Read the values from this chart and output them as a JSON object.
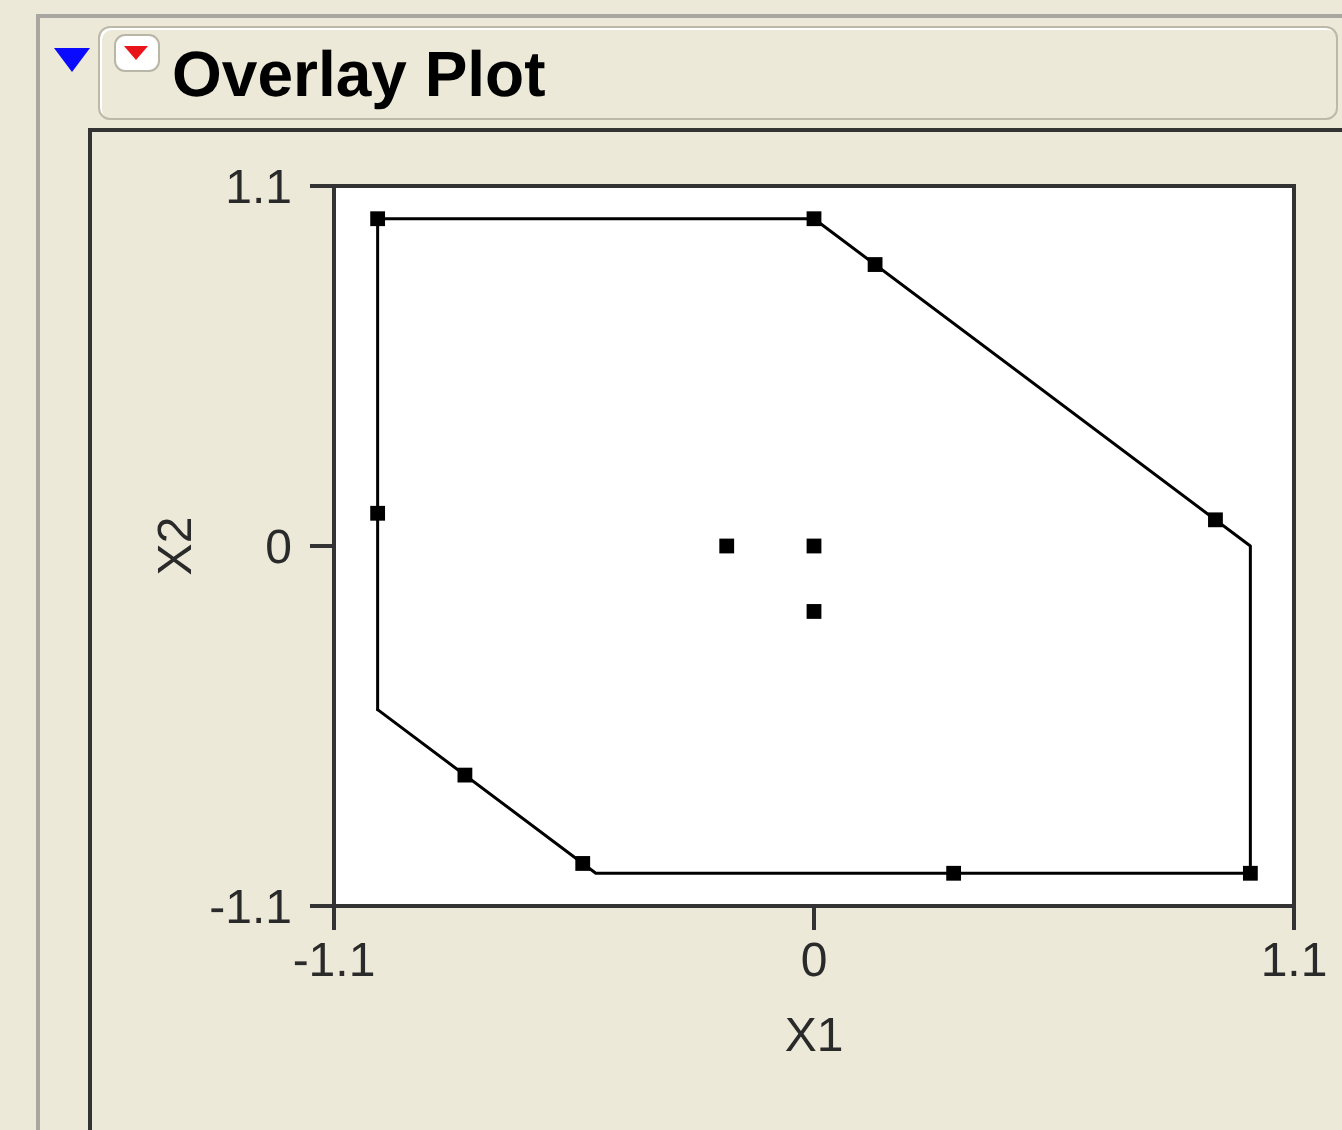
{
  "chart_data": {
    "type": "scatter",
    "title": "Overlay Plot",
    "xlabel": "X1",
    "ylabel": "X2",
    "xlim": [
      -1.1,
      1.1
    ],
    "xticks": [
      -1.1,
      0,
      1.1
    ],
    "ylim": [
      -1.1,
      1.1
    ],
    "yticks": [
      -1.1,
      0,
      1.1
    ],
    "series": [
      {
        "type": "line",
        "color": "#000000",
        "marker": "none",
        "line_style": "solid",
        "x": [
          -1,
          -1,
          0,
          1,
          1
        ],
        "values": [
          -0.5,
          1,
          1,
          0,
          -1
        ]
      },
      {
        "type": "line",
        "color": "#000000",
        "marker": "none",
        "line_style": "solid",
        "x": [
          -1,
          -0.5,
          1
        ],
        "values": [
          -0.5,
          -1,
          -1
        ]
      },
      {
        "color": "#000000",
        "marker": "square",
        "x": [
          -1,
          0,
          0.14,
          0.92,
          1,
          0.32,
          -0.53,
          -0.8,
          -1,
          -0.2,
          0,
          0
        ],
        "values": [
          1,
          1,
          0.86,
          0.08,
          -1,
          -1,
          -0.97,
          -0.7,
          0.1,
          0,
          0,
          -0.2
        ]
      }
    ]
  }
}
